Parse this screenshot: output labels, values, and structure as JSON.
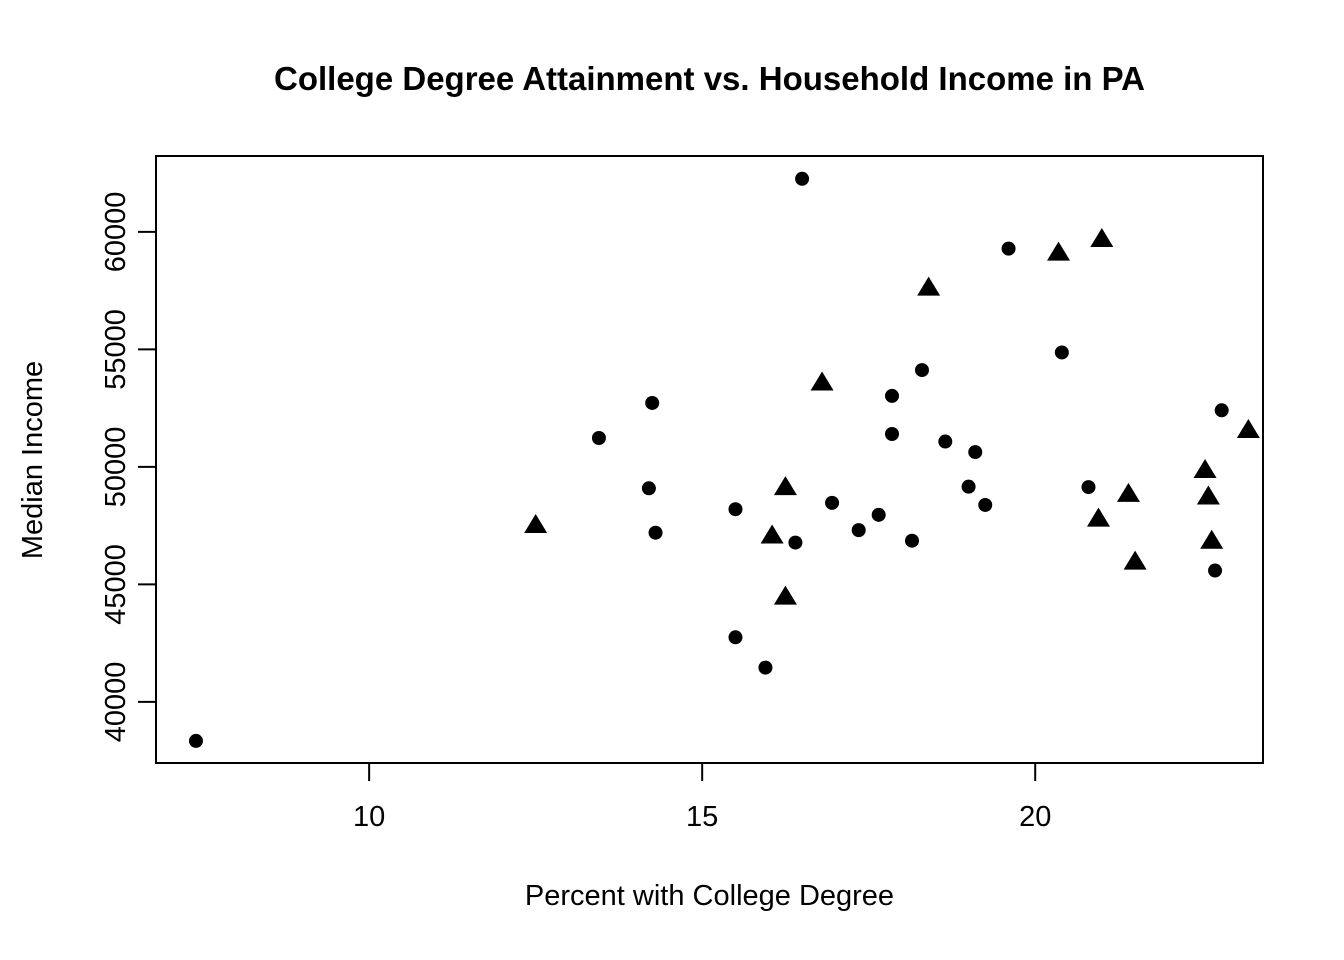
{
  "chart_data": {
    "type": "scatter",
    "title": "College Degree Attainment vs. Household Income in PA",
    "xlabel": "Percent with College Degree",
    "ylabel": "Median Income",
    "xlim": [
      6.8,
      23.42
    ],
    "ylim": [
      37400,
      63230
    ],
    "x_ticks": [
      10,
      15,
      20
    ],
    "y_ticks": [
      40000,
      45000,
      50000,
      55000,
      60000
    ],
    "grid": false,
    "legend_position": "none",
    "background_color": "#ffffff",
    "point_color": "#000000",
    "axis_color": "#000000",
    "series": [
      {
        "name": "counties-circle-marker",
        "marker": "filled-circle",
        "points": [
          [
            7.4,
            38340
          ],
          [
            16.5,
            62260
          ],
          [
            19.6,
            59290
          ],
          [
            20.4,
            54870
          ],
          [
            18.3,
            54120
          ],
          [
            17.85,
            53020
          ],
          [
            14.25,
            52720
          ],
          [
            22.8,
            52410
          ],
          [
            17.85,
            51400
          ],
          [
            13.45,
            51230
          ],
          [
            18.65,
            51080
          ],
          [
            19.1,
            50630
          ],
          [
            14.2,
            49090
          ],
          [
            19.0,
            49160
          ],
          [
            20.8,
            49140
          ],
          [
            16.95,
            48470
          ],
          [
            19.25,
            48380
          ],
          [
            15.5,
            48200
          ],
          [
            17.65,
            47960
          ],
          [
            17.35,
            47310
          ],
          [
            14.3,
            47200
          ],
          [
            16.4,
            46780
          ],
          [
            18.15,
            46860
          ],
          [
            22.7,
            45590
          ],
          [
            15.5,
            42750
          ],
          [
            15.95,
            41460
          ]
        ]
      },
      {
        "name": "counties-triangle-marker",
        "marker": "filled-triangle",
        "points": [
          [
            20.35,
            59120
          ],
          [
            21.0,
            59700
          ],
          [
            18.4,
            57630
          ],
          [
            16.8,
            53590
          ],
          [
            23.2,
            51570
          ],
          [
            22.55,
            49870
          ],
          [
            16.25,
            49140
          ],
          [
            21.4,
            48850
          ],
          [
            22.6,
            48740
          ],
          [
            20.95,
            47800
          ],
          [
            12.5,
            47530
          ],
          [
            16.05,
            47080
          ],
          [
            22.65,
            46860
          ],
          [
            21.5,
            45970
          ],
          [
            16.25,
            44480
          ]
        ]
      }
    ]
  }
}
